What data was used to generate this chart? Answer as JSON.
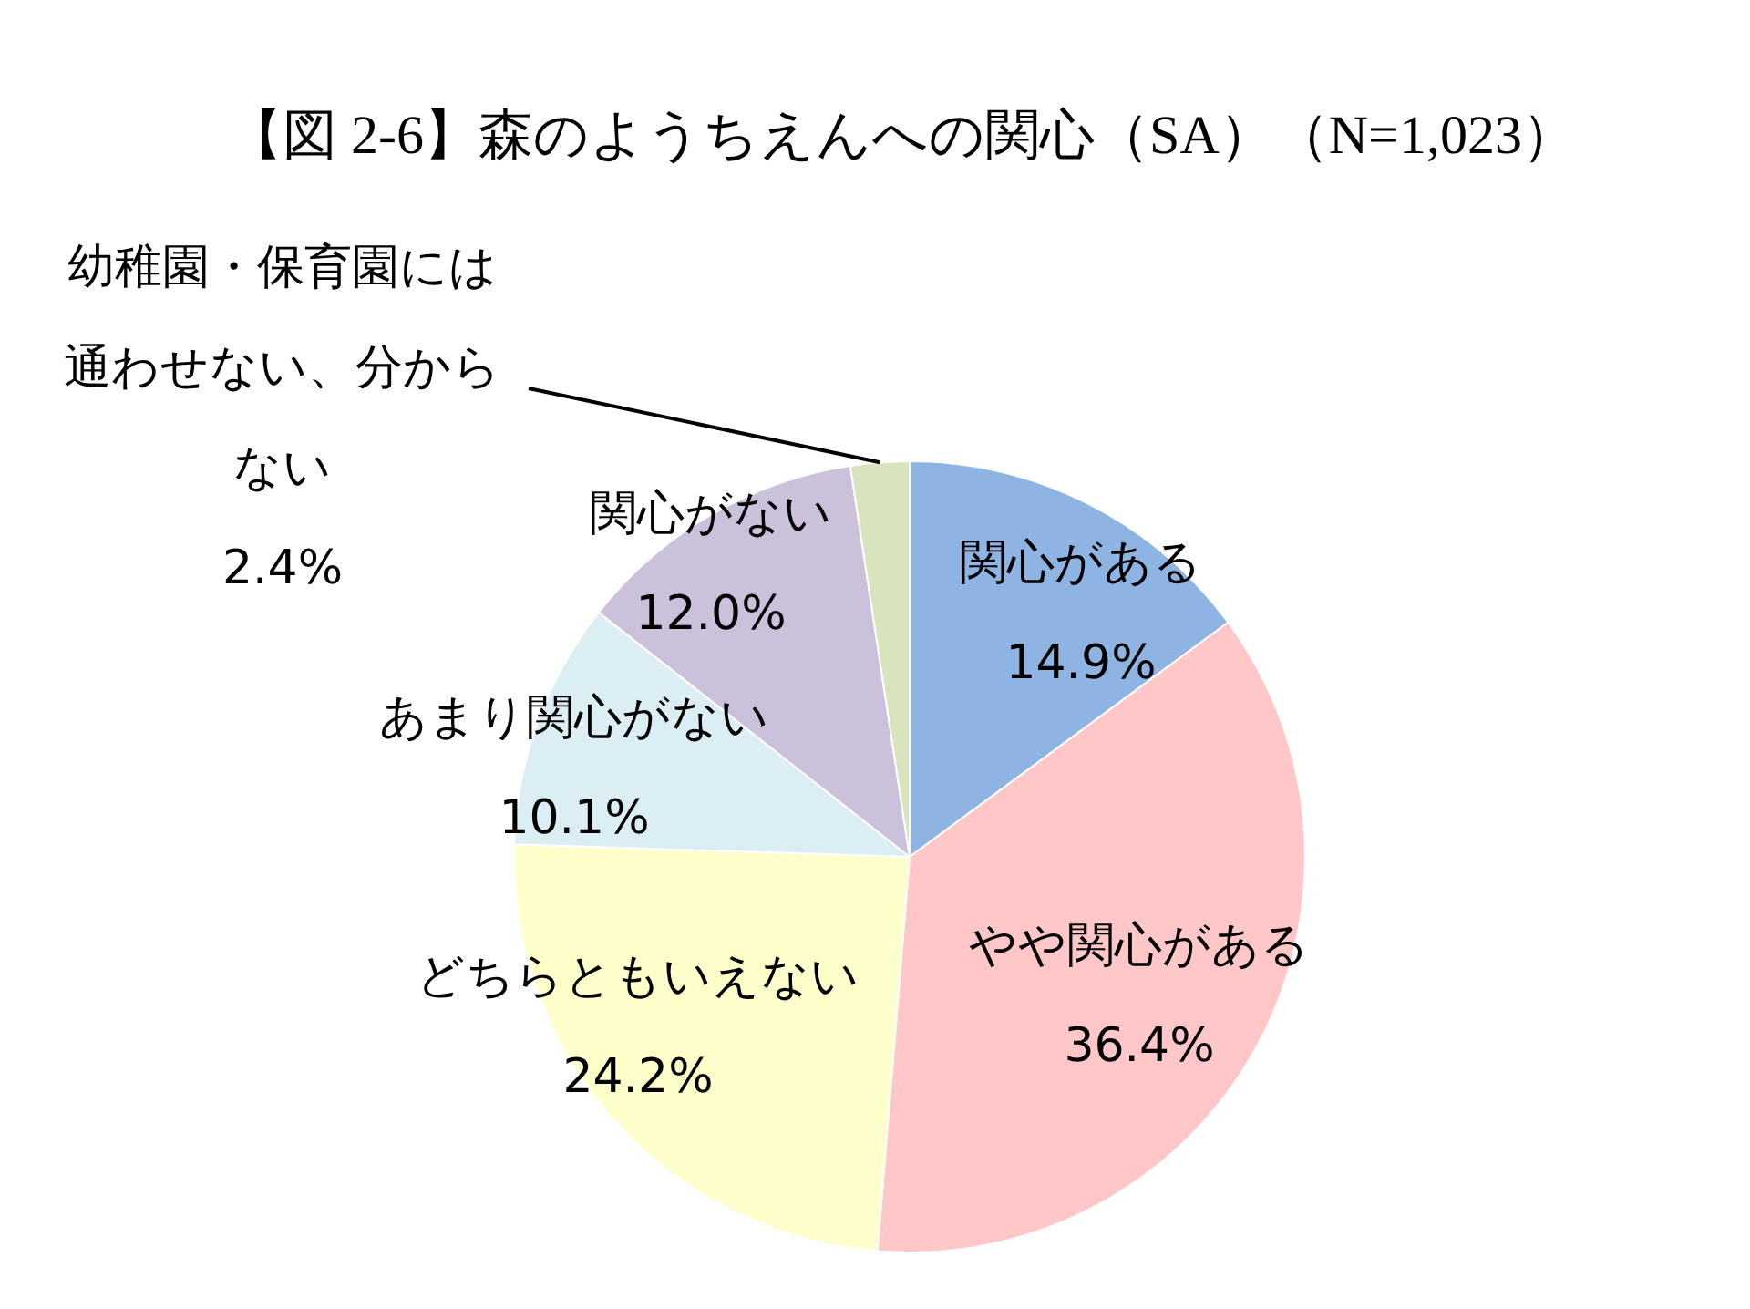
{
  "chart_data": {
    "type": "pie",
    "title": "【図 2-6】森のようちえんへの関心（SA）（N=1,023）",
    "categories": [
      "関心がある",
      "やや関心がある",
      "どちらともいえない",
      "あまり関心がない",
      "関心がない",
      "幼稚園・保育園には通わせない、分からない"
    ],
    "values": [
      14.9,
      36.4,
      24.2,
      10.1,
      12.0,
      2.4
    ],
    "value_labels": [
      "14.9%",
      "36.4%",
      "24.2%",
      "10.1%",
      "12.0%",
      "2.4%"
    ],
    "colors": [
      "#8eb4e3",
      "#ffc7c7",
      "#ffffcc",
      "#dbeef4",
      "#ccc1da",
      "#d7e4bd"
    ],
    "legend": false
  }
}
